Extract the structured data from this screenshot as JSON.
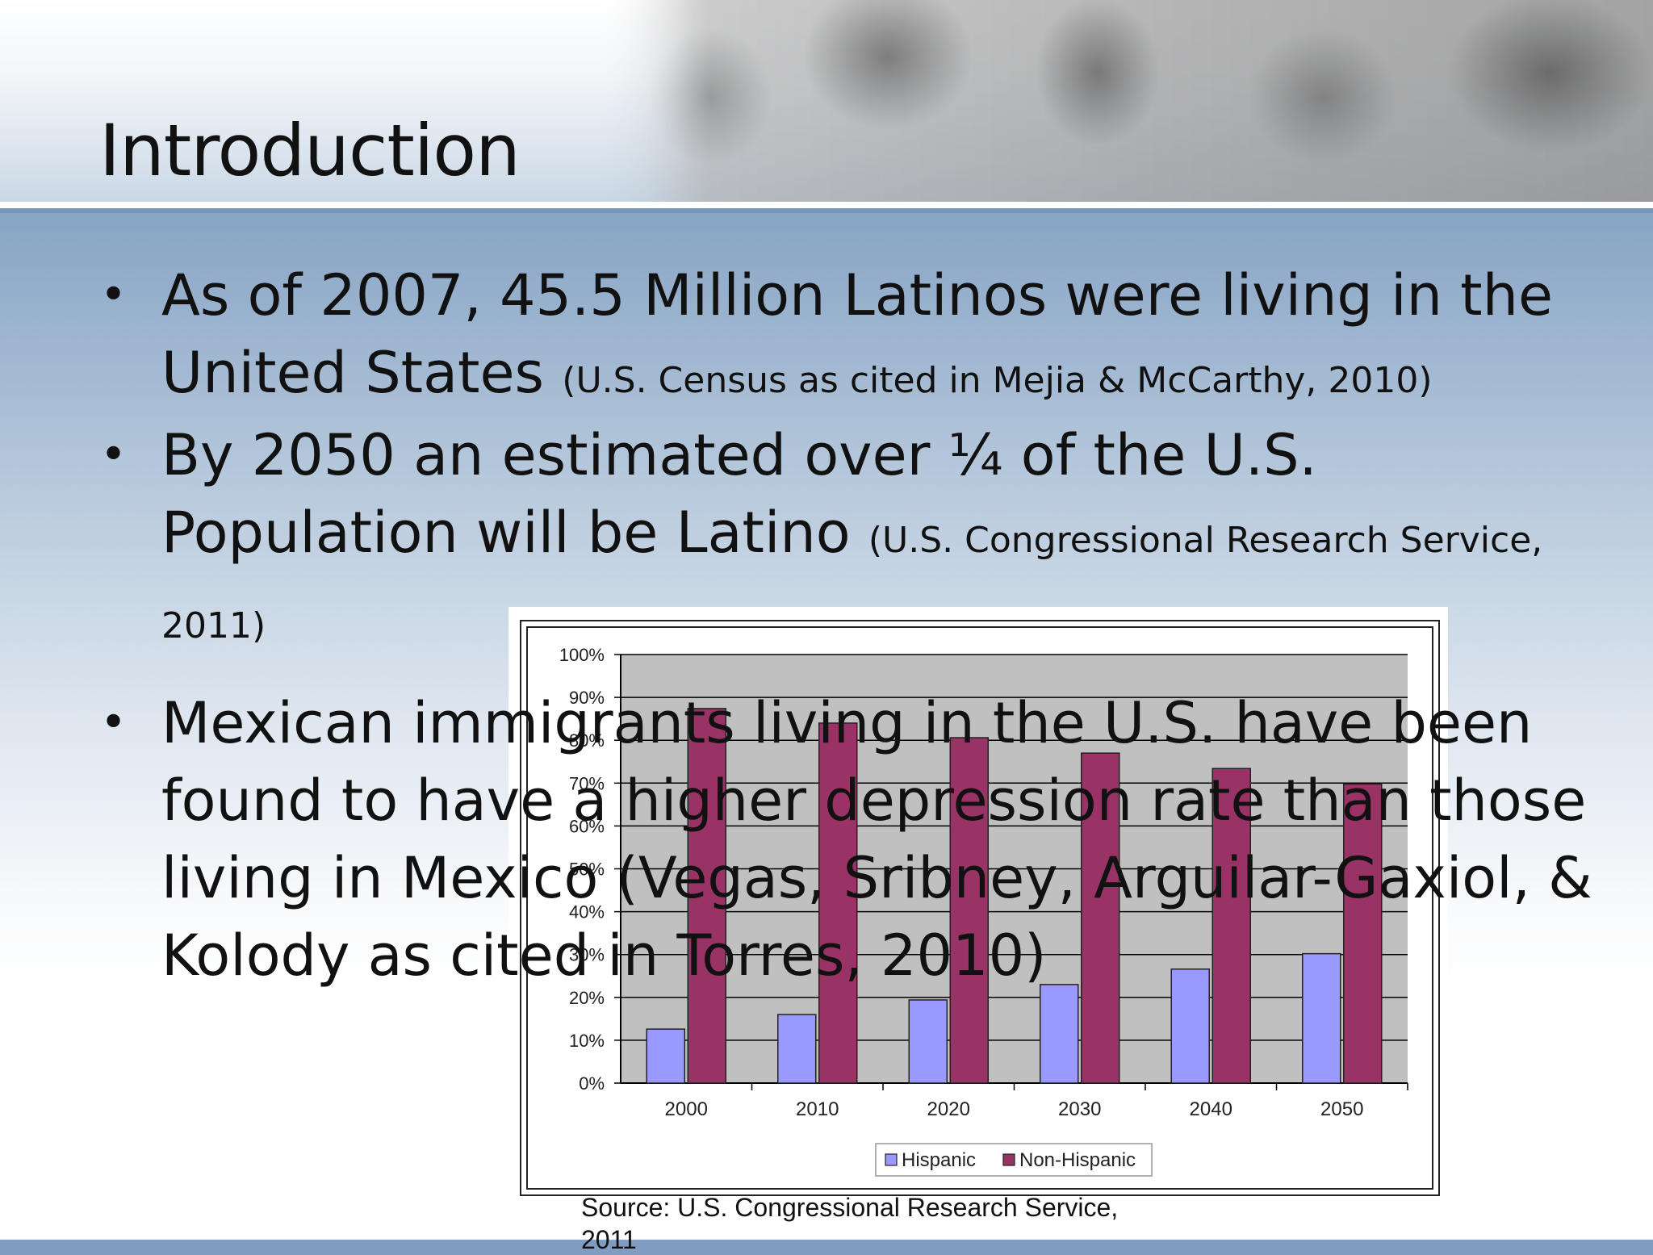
{
  "slide": {
    "title": "Introduction",
    "bullets": [
      {
        "text": "As of 2007, 45.5 Million Latinos were living in the United States",
        "cite": "(U.S. Census as cited in Mejia & McCarthy, 2010)"
      },
      {
        "text": "By 2050 an estimated over ¼ of the U.S. Population will be Latino",
        "cite": "(U.S. Congressional Research Service, 2011)"
      },
      {
        "text": "Mexican immigrants living in the U.S. have  been found to have a higher depression rate than those living in Mexico (Vegas, Sribney, Arguilar-Gaxiol, & Kolody as cited in Torres, 2010)",
        "cite": ""
      }
    ],
    "bullet_marker": "•",
    "source_line1": "Source: U.S. Congressional Research Service,",
    "source_line2": "2011"
  },
  "chart_data": {
    "type": "bar",
    "title": "",
    "xlabel": "",
    "ylabel": "",
    "categories": [
      "2000",
      "2010",
      "2020",
      "2030",
      "2040",
      "2050"
    ],
    "series": [
      {
        "name": "Hispanic",
        "color": "#9999ff",
        "values": [
          12.6,
          16.0,
          19.4,
          23.0,
          26.6,
          30.2
        ]
      },
      {
        "name": "Non-Hispanic",
        "color": "#993366",
        "values": [
          87.4,
          84.0,
          80.6,
          77.0,
          73.4,
          69.8
        ]
      }
    ],
    "ylim": [
      0,
      100
    ],
    "yticks": [
      "0%",
      "10%",
      "20%",
      "30%",
      "40%",
      "50%",
      "60%",
      "70%",
      "80%",
      "90%",
      "100%"
    ],
    "grid": true,
    "plot_background": "#c0c0c0",
    "legend_position": "bottom"
  }
}
